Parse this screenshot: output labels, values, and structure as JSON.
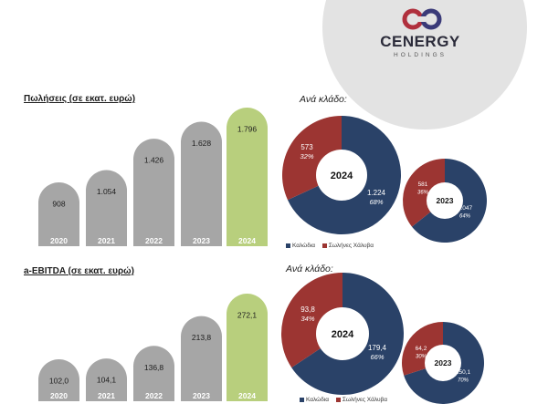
{
  "brand": {
    "name": "CENERGY",
    "sub": "HOLDINGS"
  },
  "colors": {
    "bar_gray": "#a6a6a6",
    "bar_green": "#b8cf7d",
    "navy": "#2a4268",
    "red": "#9c3532",
    "deco_circle": "#e3e3e3"
  },
  "sales_title": "Πωλήσεις (σε εκατ. ευρώ)",
  "sales_segment_title": "Ανά κλάδο:",
  "ebitda_title": "a-EBITDA (σε εκατ. ευρώ)",
  "ebitda_segment_title": "Ανά κλάδο:",
  "legend": {
    "cables": "Καλώδια",
    "steel": "Σωλήνες Χάλυβα"
  },
  "chart_data": [
    {
      "type": "bar",
      "title": "Πωλήσεις (σε εκατ. ευρώ)",
      "categories": [
        "2020",
        "2021",
        "2022",
        "2023",
        "2024"
      ],
      "values": [
        908,
        1054,
        1426,
        1628,
        1796
      ],
      "labels": [
        "908",
        "1.054",
        "1.426",
        "1.628",
        "1.796"
      ],
      "highlight": "2024"
    },
    {
      "type": "pie",
      "title": "Ανά κλάδο:",
      "center_label": "2024",
      "slices": [
        {
          "name": "Καλώδια",
          "value": 1224,
          "label": "1.224",
          "pct": "68%"
        },
        {
          "name": "Σωλήνες Χάλυβα",
          "value": 573,
          "label": "573",
          "pct": "32%"
        }
      ]
    },
    {
      "type": "pie",
      "center_label": "2023",
      "slices": [
        {
          "name": "Καλώδια",
          "value": 1047,
          "label": "1.047",
          "pct": "64%"
        },
        {
          "name": "Σωλήνες Χάλυβα",
          "value": 581,
          "label": "581",
          "pct": "36%"
        }
      ]
    },
    {
      "type": "bar",
      "title": "a-EBITDA (σε εκατ. ευρώ)",
      "categories": [
        "2020",
        "2021",
        "2022",
        "2023",
        "2024"
      ],
      "values": [
        102.0,
        104.1,
        136.8,
        213.8,
        272.1
      ],
      "labels": [
        "102,0",
        "104,1",
        "136,8",
        "213,8",
        "272,1"
      ],
      "highlight": "2024"
    },
    {
      "type": "pie",
      "title": "Ανά κλάδο:",
      "center_label": "2024",
      "slices": [
        {
          "name": "Καλώδια",
          "value": 179.4,
          "label": "179,4",
          "pct": "66%"
        },
        {
          "name": "Σωλήνες Χάλυβα",
          "value": 93.8,
          "label": "93,8",
          "pct": "34%"
        }
      ]
    },
    {
      "type": "pie",
      "center_label": "2023",
      "slices": [
        {
          "name": "Καλώδια",
          "value": 150.1,
          "label": "150,1",
          "pct": "70%"
        },
        {
          "name": "Σωλήνες Χάλυβα",
          "value": 64.2,
          "label": "64,2",
          "pct": "30%"
        }
      ]
    }
  ]
}
